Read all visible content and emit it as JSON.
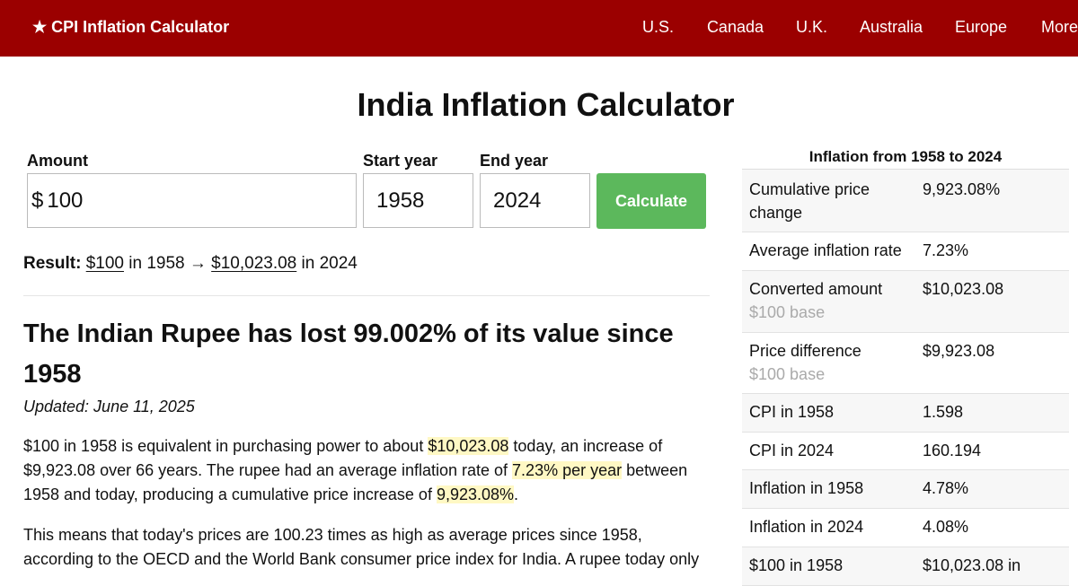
{
  "header": {
    "brand": "★ CPI Inflation Calculator",
    "nav": [
      "U.S.",
      "Canada",
      "U.K.",
      "Australia",
      "Europe",
      "More"
    ]
  },
  "title": "India Inflation Calculator",
  "form": {
    "amount_label": "Amount",
    "currency_symbol": "$",
    "amount_value": "100",
    "start_label": "Start year",
    "start_value": "1958",
    "end_label": "End year",
    "end_value": "2024",
    "button_label": "Calculate"
  },
  "result": {
    "label": "Result:",
    "from_amount": "$100",
    "from_text": "in 1958 →",
    "to_amount": "$10,023.08",
    "to_text": "in 2024"
  },
  "article": {
    "headline": "The Indian Rupee has lost 99.002% of its value since 1958",
    "updated": "Updated: June 11, 2025",
    "p1": {
      "a": "$100 in 1958 is equivalent in purchasing power to about ",
      "h1": "$10,023.08",
      "b": " today, an increase of $9,923.08 over 66 years. The rupee had an average inflation rate of ",
      "h2": "7.23% per year",
      "c": " between 1958 and today, producing a cumulative price increase of ",
      "h3": "9,923.08%",
      "d": "."
    },
    "p2": "This means that today's prices are 100.23 times as high as average prices since 1958, according to the OECD and the World Bank consumer price index for India. A rupee today only"
  },
  "sidebar": {
    "title": "Inflation from 1958 to 2024",
    "rows": [
      {
        "label": "Cumulative price change",
        "value": "9,923.08%",
        "sub": ""
      },
      {
        "label": "Average inflation rate",
        "value": "7.23%",
        "sub": ""
      },
      {
        "label": "Converted amount",
        "value": "$10,023.08",
        "sub": "$100 base"
      },
      {
        "label": "Price difference",
        "value": "$9,923.08",
        "sub": "$100 base"
      },
      {
        "label": "CPI in 1958",
        "value": "1.598",
        "sub": ""
      },
      {
        "label": "CPI in 2024",
        "value": "160.194",
        "sub": ""
      },
      {
        "label": "Inflation in 1958",
        "value": "4.78%",
        "sub": ""
      },
      {
        "label": "Inflation in 2024",
        "value": "4.08%",
        "sub": ""
      },
      {
        "label": "$100 in 1958",
        "value": "$10,023.08 in",
        "sub": ""
      }
    ]
  }
}
